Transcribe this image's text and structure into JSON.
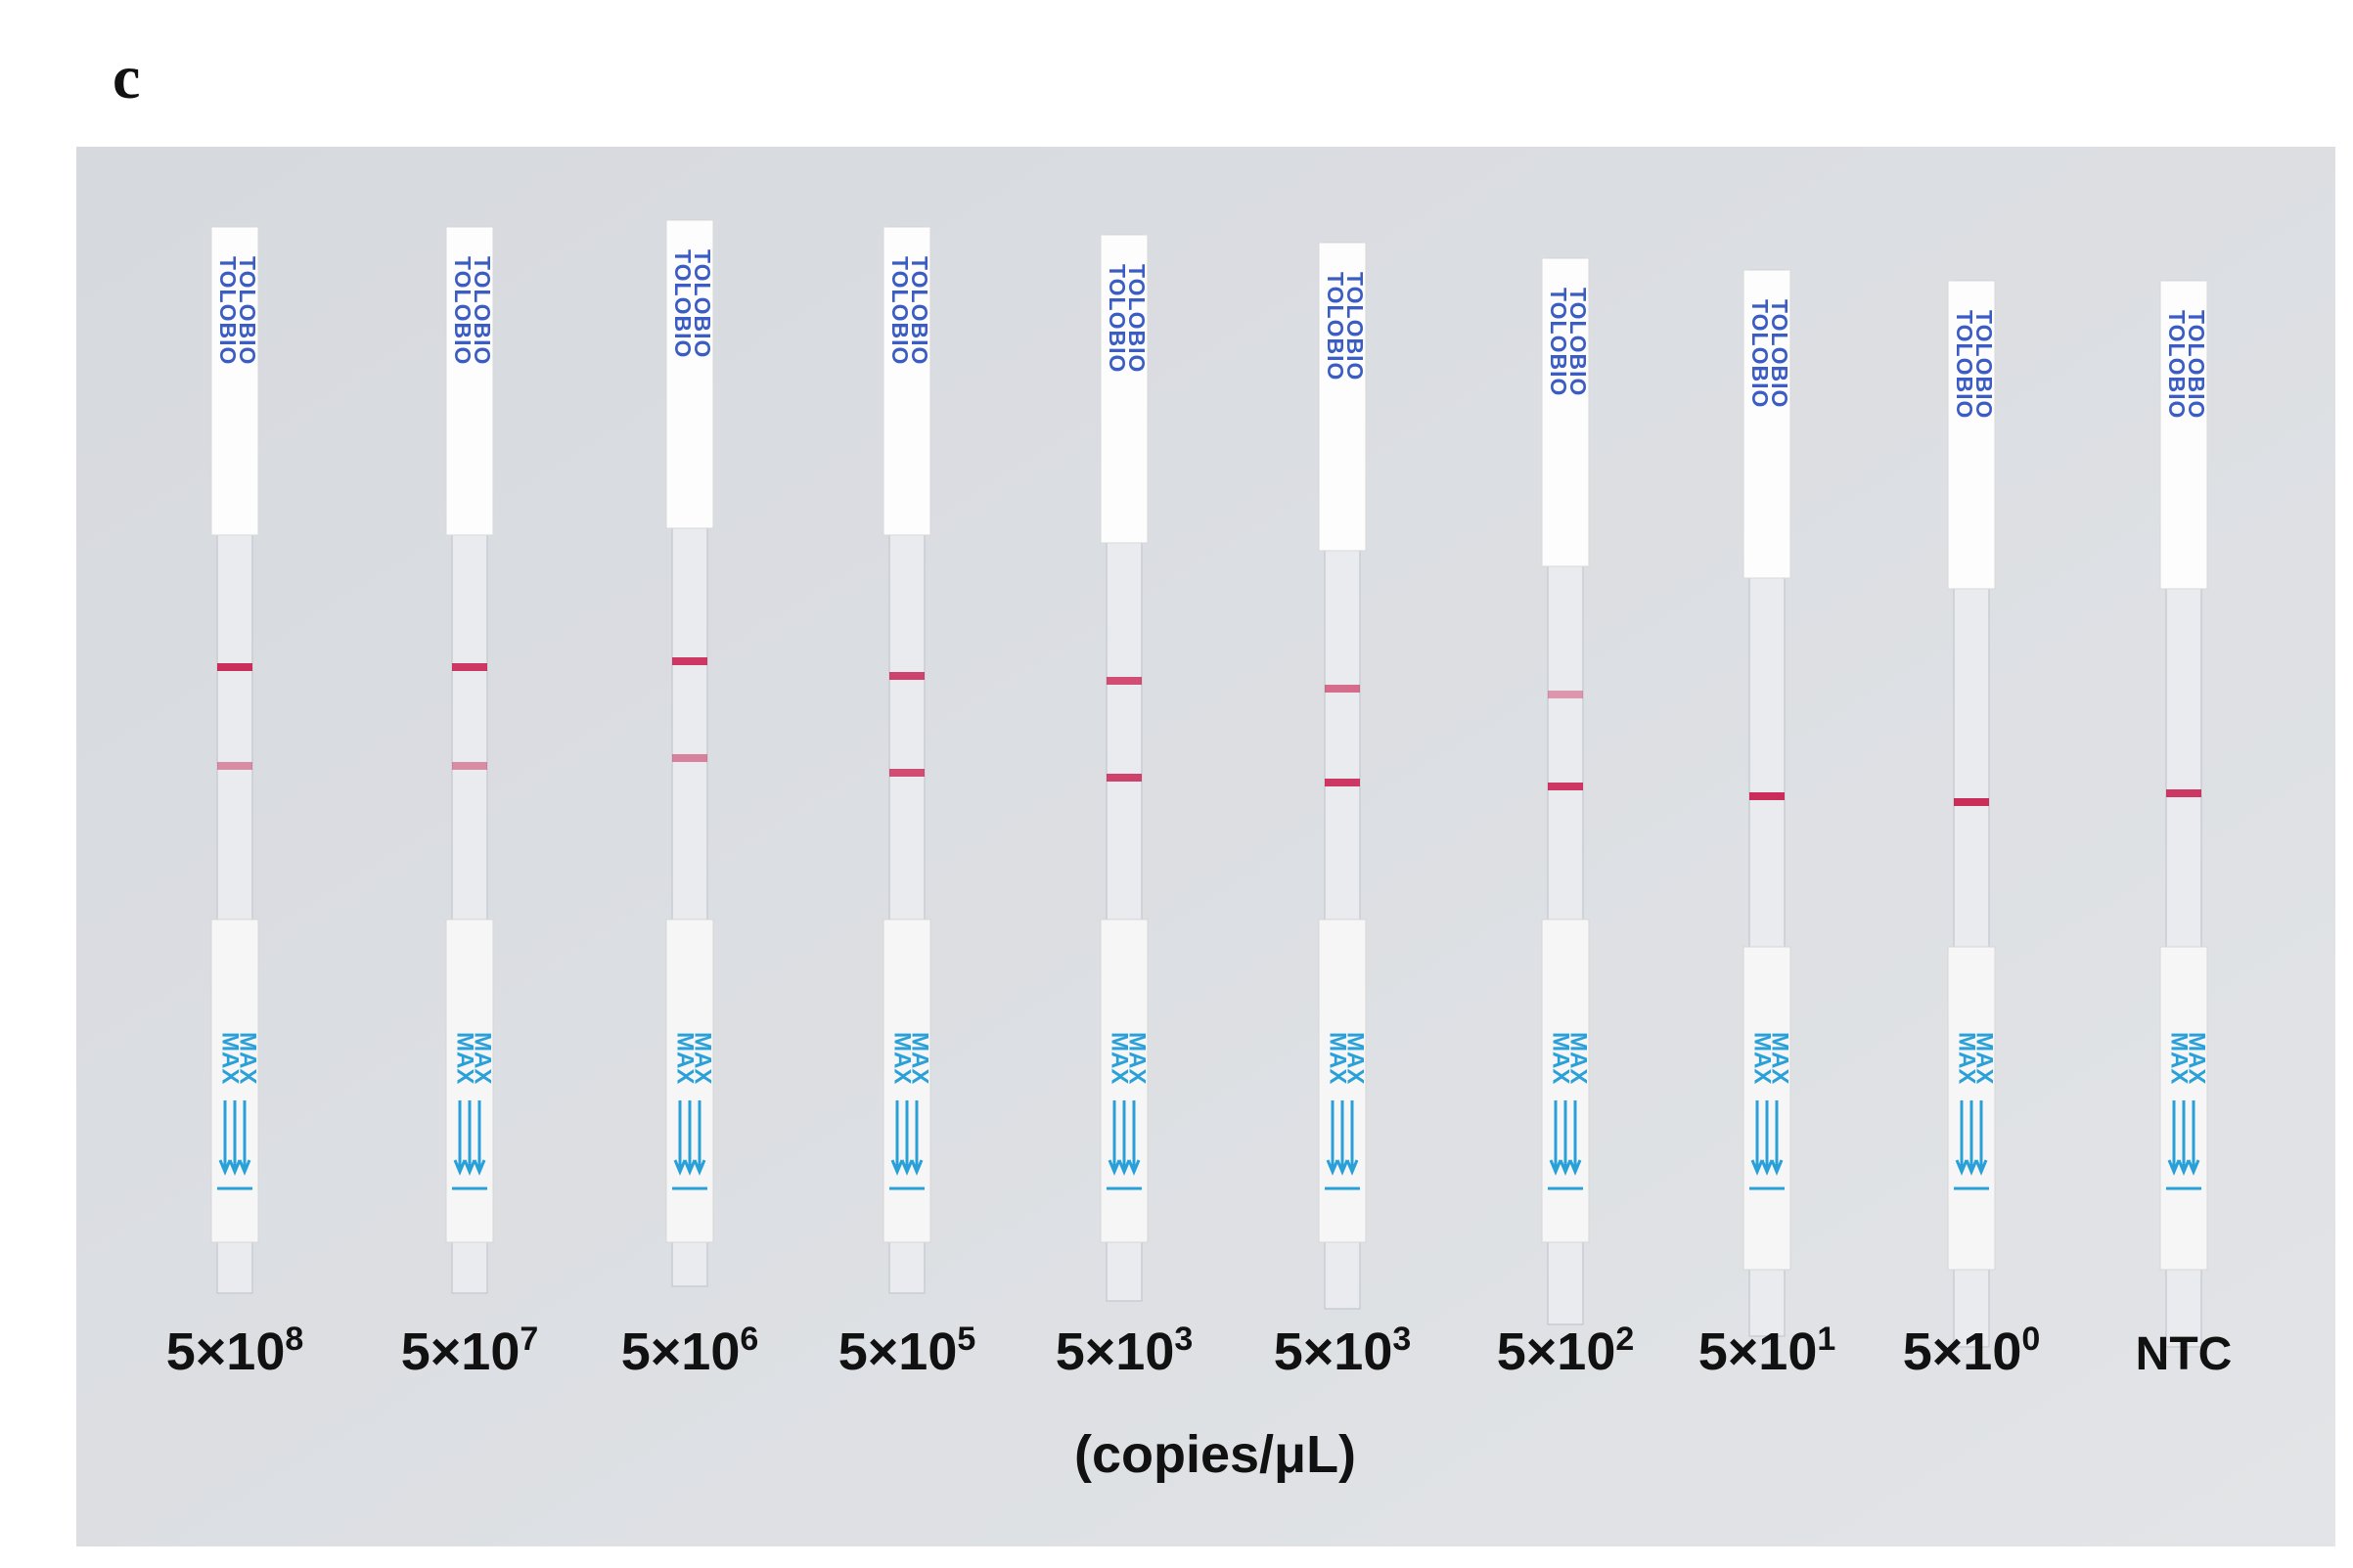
{
  "panel_label": "c",
  "strip_texts": {
    "brand": "TOLOBIO",
    "max": "MAX"
  },
  "strips": [
    {
      "base": "5×10",
      "exp": "8"
    },
    {
      "base": "5×10",
      "exp": "7"
    },
    {
      "base": "5×10",
      "exp": "6"
    },
    {
      "base": "5×10",
      "exp": "5"
    },
    {
      "base": "5×10",
      "exp": "3"
    },
    {
      "base": "5×10",
      "exp": "3"
    },
    {
      "base": "5×10",
      "exp": "2"
    },
    {
      "base": "5×10",
      "exp": "1"
    },
    {
      "base": "5×10",
      "exp": "0"
    },
    {
      "base": "NTC"
    }
  ],
  "unit_caption": "(copies/μL)"
}
